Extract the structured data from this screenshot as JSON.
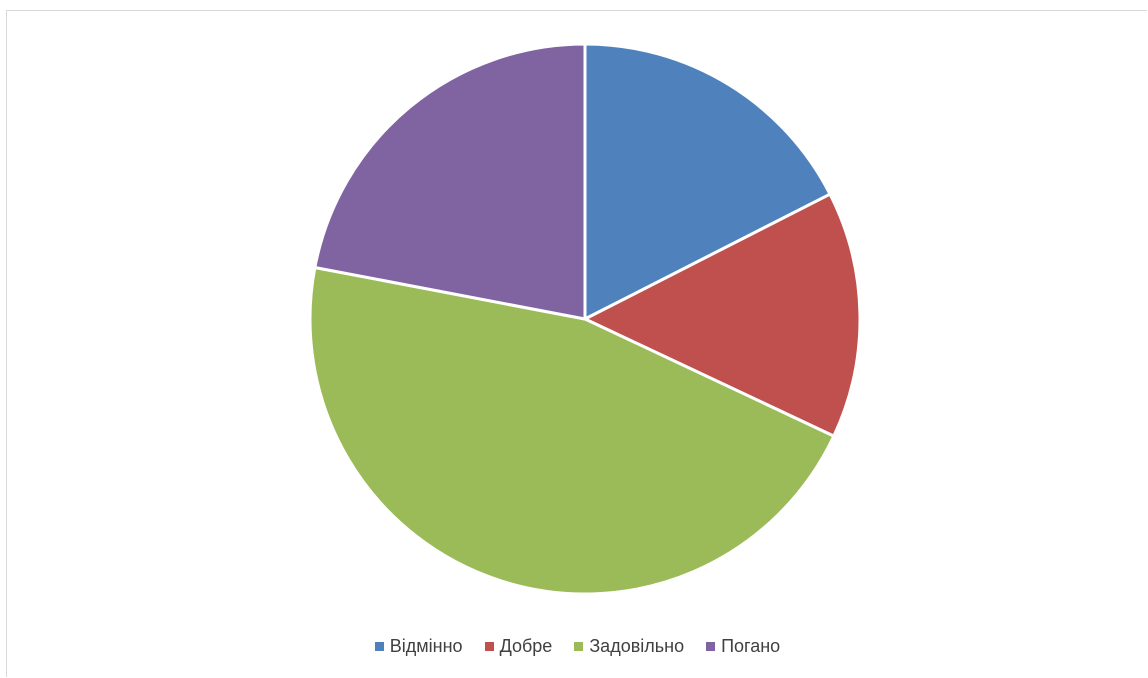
{
  "chart_data": {
    "type": "pie",
    "categories": [
      "Відмінно",
      "Добре",
      "Задовільно",
      "Погано"
    ],
    "values": [
      17.5,
      14.5,
      46,
      22
    ],
    "colors": [
      "#4f81bd",
      "#c0504d",
      "#9bbb59",
      "#8064a2"
    ],
    "start_angle_deg": 0,
    "direction": "clockwise",
    "slice_border_color": "#ffffff",
    "legend_position": "bottom"
  }
}
